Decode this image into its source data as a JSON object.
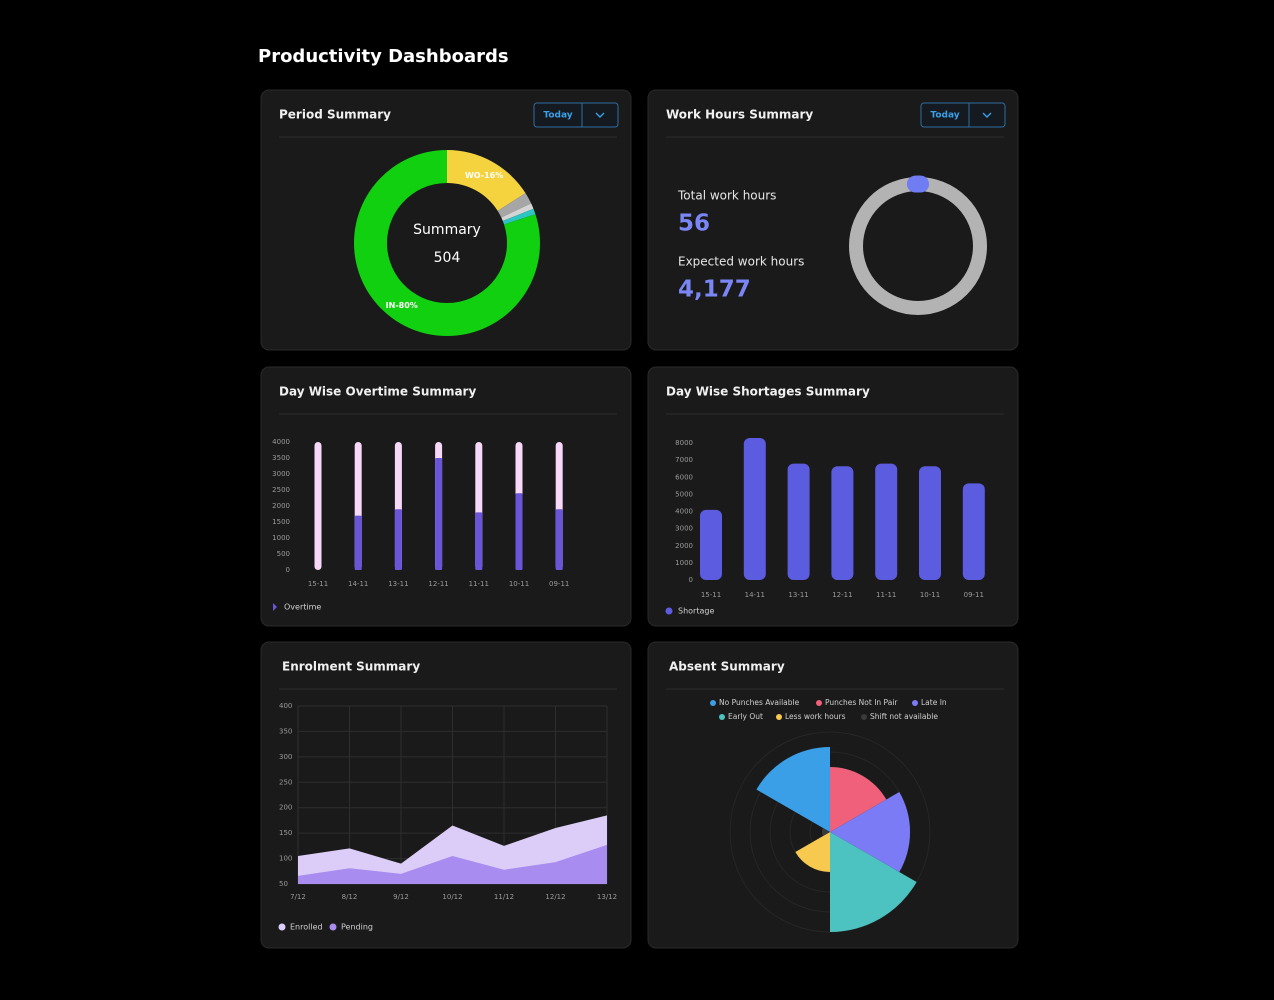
{
  "title": "Productivity Dashboards",
  "chart_data": [
    {
      "type": "donut",
      "title": "Period Summary",
      "button": "Today",
      "center_label": "Summary",
      "center_value": 504,
      "values": [
        16,
        2,
        1,
        1,
        80
      ],
      "value_labels": [
        "WO-16%",
        null,
        null,
        null,
        "IN-80%"
      ],
      "colors": [
        "#f5d33f",
        "#a6a6a6",
        "#d4d4d4",
        "#2ec4c4",
        "#10d010"
      ]
    },
    {
      "type": "progress_ring",
      "title": "Work Hours Summary",
      "button": "Today",
      "metrics": [
        {
          "label": "Total work hours",
          "value": 56
        },
        {
          "label": "Expected work hours",
          "value": 4177,
          "value_label": "4,177"
        }
      ],
      "colors": {
        "progress": "#6f7cf2",
        "track": "#b3b3b3"
      }
    },
    {
      "type": "bar",
      "title": "Day Wise Overtime Summary",
      "categories": [
        "15-11",
        "14-11",
        "13-11",
        "12-11",
        "11-11",
        "10-11",
        "09-11"
      ],
      "series": [
        {
          "name": "Overtime",
          "color": "#6a55d8",
          "values": [
            0,
            1700,
            1900,
            3500,
            1800,
            2400,
            1900
          ]
        }
      ],
      "track_color": "#f8d8f8",
      "ylim": [
        0,
        4000
      ],
      "yticks": [
        0,
        500,
        1000,
        1500,
        2000,
        2500,
        3000,
        3500,
        4000
      ]
    },
    {
      "type": "bar",
      "title": "Day Wise Shortages Summary",
      "categories": [
        "15-11",
        "14-11",
        "13-11",
        "12-11",
        "11-11",
        "10-11",
        "09-11"
      ],
      "series": [
        {
          "name": "Shortage",
          "color": "#5c5ce0",
          "values": [
            4100,
            8300,
            6800,
            6650,
            6800,
            6650,
            5650
          ]
        }
      ],
      "ylim": [
        0,
        8300
      ],
      "yticks": [
        0,
        1000,
        2000,
        3000,
        4000,
        5000,
        6000,
        7000,
        8000
      ]
    },
    {
      "type": "area",
      "title": "Enrolment Summary",
      "categories": [
        "7/12",
        "8/12",
        "9/12",
        "10/12",
        "11/12",
        "12/12",
        "13/12"
      ],
      "series": [
        {
          "name": "Enrolled",
          "color": "#dccdf8",
          "values": [
            105,
            120,
            90,
            165,
            125,
            160,
            185
          ]
        },
        {
          "name": "Pending",
          "color": "#a98cf0",
          "values": [
            66,
            81,
            70,
            105,
            78,
            93,
            127
          ]
        }
      ],
      "ylim": [
        50,
        400
      ],
      "yticks": [
        50,
        100,
        150,
        200,
        250,
        300,
        350,
        400
      ],
      "grid": true
    },
    {
      "type": "polar_area",
      "title": "Absent Summary",
      "categories": [
        "No Punches Available",
        "Punches Not In Pair",
        "Late In",
        "Early Out",
        "Less work hours",
        "Shift not available"
      ],
      "colors": [
        "#3b9fe8",
        "#f0607a",
        "#7b7bf5",
        "#4cc3c0",
        "#f8c94f",
        "#3a3a3a"
      ],
      "values": [
        85,
        65,
        80,
        100,
        40,
        8
      ],
      "rlim": [
        0,
        100
      ]
    }
  ]
}
